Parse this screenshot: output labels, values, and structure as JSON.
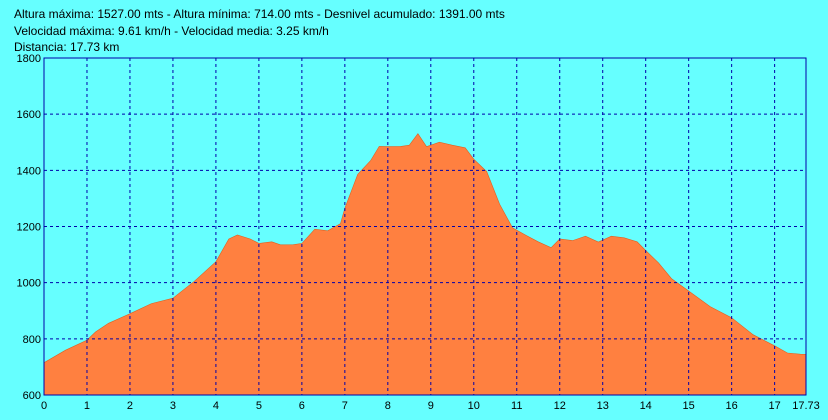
{
  "info": {
    "line1": "Altura máxima: 1527.00 mts - Altura mínima: 714.00 mts - Desnivel acumulado: 1391.00 mts",
    "line2": "Velocidad máxima: 9.61 km/h - Velocidad media: 3.25 km/h",
    "line3": "Distancia: 17.73 km"
  },
  "colors": {
    "background": "#66FFFF",
    "area_fill": "#FF8040",
    "grid": "#0000AA",
    "frame": "#0000AA"
  },
  "chart_data": {
    "type": "area",
    "title": "",
    "xlabel": "",
    "ylabel": "",
    "xlim": [
      0,
      17.73
    ],
    "ylim": [
      600,
      1800
    ],
    "grid": true,
    "x_ticks": [
      "0",
      "1",
      "2",
      "3",
      "4",
      "5",
      "6",
      "7",
      "8",
      "9",
      "10",
      "11",
      "12",
      "13",
      "14",
      "15",
      "16",
      "17",
      "17.73"
    ],
    "y_ticks": [
      "600",
      "800",
      "1000",
      "1200",
      "1400",
      "1600",
      "1800"
    ],
    "series": [
      {
        "x": [
          0,
          0.5,
          1,
          1.2,
          1.5,
          2,
          2.5,
          3,
          3.5,
          4,
          4.3,
          4.5,
          4.8,
          5,
          5.3,
          5.5,
          5.8,
          6,
          6.3,
          6.6,
          6.9,
          7,
          7.3,
          7.6,
          7.8,
          8,
          8.3,
          8.5,
          8.7,
          8.9,
          9.2,
          9.5,
          9.8,
          10,
          10.3,
          10.6,
          10.9,
          11.2,
          11.5,
          11.8,
          12,
          12.3,
          12.6,
          12.9,
          13.2,
          13.5,
          13.8,
          14,
          14.3,
          14.6,
          15,
          15.5,
          16,
          16.5,
          17,
          17.3,
          17.6,
          17.73
        ],
        "values": [
          715,
          765,
          790,
          830,
          850,
          895,
          920,
          950,
          1000,
          1080,
          1150,
          1175,
          1150,
          1145,
          1140,
          1140,
          1130,
          1145,
          1185,
          1190,
          1205,
          1270,
          1380,
          1440,
          1480,
          1490,
          1480,
          1495,
          1525,
          1490,
          1495,
          1495,
          1475,
          1445,
          1390,
          1285,
          1190,
          1175,
          1140,
          1130,
          1150,
          1155,
          1160,
          1150,
          1160,
          1165,
          1140,
          1120,
          1065,
          1020,
          965,
          920,
          870,
          820,
          770,
          755,
          740,
          745
        ]
      }
    ]
  }
}
